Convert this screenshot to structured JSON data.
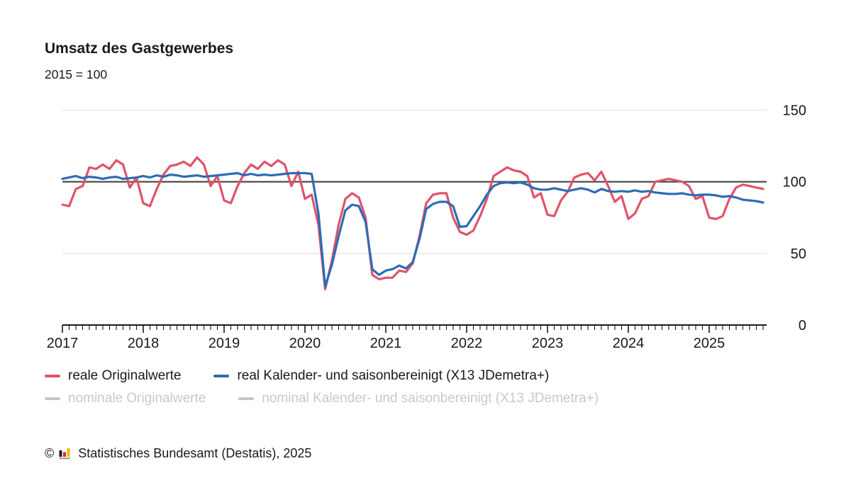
{
  "chart_data": {
    "type": "line",
    "title": "Umsatz des Gastgewerbes",
    "subtitle": "2015 = 100",
    "xlabel": "",
    "ylabel": "",
    "frequency": "monthly",
    "x_start": "2017-01",
    "x_end": "2025-09",
    "x_tick_labels": [
      "2017",
      "2018",
      "2019",
      "2020",
      "2021",
      "2022",
      "2023",
      "2024",
      "2025"
    ],
    "y_ticks": [
      0,
      50,
      100,
      150
    ],
    "ylim": [
      0,
      150
    ],
    "reference_line": 100,
    "grid": "horizontal-only",
    "legend_position": "bottom",
    "y_axis_labels_side": "right",
    "colors": {
      "real_original": "#e0536a",
      "real_adjusted": "#2e6cb4",
      "muted_legend": "#c3c6c9",
      "reference_line": "#454545",
      "axis": "#1a1a1a",
      "gridline": "#e7e7e7",
      "text": "#1a1a1a"
    },
    "series": [
      {
        "name": "reale Originalwerte",
        "color": "#e0536a",
        "values": [
          84,
          83,
          95,
          97,
          110,
          109,
          112,
          109,
          115,
          112,
          96,
          103,
          85,
          83,
          95,
          105,
          111,
          112,
          114,
          111,
          117,
          112,
          97,
          104,
          87,
          85,
          97,
          106,
          112,
          109,
          114,
          111,
          115,
          112,
          97,
          107,
          88,
          91,
          70,
          25,
          45,
          70,
          88,
          92,
          89,
          75,
          35,
          32,
          33,
          33,
          38,
          37,
          43,
          62,
          85,
          91,
          92,
          92,
          75,
          65,
          63,
          66,
          76,
          88,
          104,
          107,
          110,
          108,
          107,
          104,
          89,
          92,
          77,
          76,
          87,
          93,
          103,
          105,
          106,
          101,
          107,
          97,
          86,
          90,
          74,
          78,
          88,
          90,
          100,
          101,
          102,
          101,
          100,
          97,
          88,
          90,
          75,
          74,
          76,
          88,
          96,
          98,
          97,
          96,
          95
        ]
      },
      {
        "name": "real Kalender- und saisonbereinigt (X13 JDemetra+)",
        "color": "#2e6cb4",
        "values": [
          102,
          103,
          104,
          102.5,
          103.5,
          103,
          102,
          103,
          103.5,
          102,
          102.5,
          103,
          104,
          103,
          104.5,
          103.5,
          105,
          104.5,
          103.5,
          104,
          104.5,
          103.5,
          104,
          104.5,
          105,
          105.5,
          106,
          104.5,
          105.5,
          104.5,
          105,
          104.5,
          105,
          105.5,
          106,
          106,
          106,
          105.5,
          78,
          27,
          42,
          62,
          80,
          84,
          83,
          72,
          39,
          35,
          38,
          39,
          41.5,
          39.5,
          44,
          60,
          81,
          84.5,
          86,
          86,
          83,
          68.5,
          69,
          76,
          83,
          91,
          97,
          99,
          99.5,
          99,
          99.5,
          98,
          95.5,
          94.5,
          94.5,
          95.5,
          94.5,
          93.5,
          94.5,
          95.5,
          94.5,
          92.5,
          95,
          93.5,
          93,
          93.5,
          93,
          94,
          93,
          93.5,
          92.5,
          92,
          91.5,
          91.5,
          92,
          91,
          90.5,
          91,
          91,
          90.5,
          89.5,
          90,
          89,
          87.5,
          87,
          86.5,
          85.5
        ]
      }
    ]
  },
  "legend": {
    "rows": [
      {
        "items": [
          {
            "label": "reale Originalwerte",
            "color": "#e0536a",
            "muted": false
          },
          {
            "label": "real Kalender- und saisonbereinigt (X13 JDemetra+)",
            "color": "#2e6cb4",
            "muted": false
          }
        ]
      },
      {
        "items": [
          {
            "label": "nominale Originalwerte",
            "color": "#c3c6c9",
            "muted": true
          },
          {
            "label": "nominal Kalender- und saisonbereinigt (X13 JDemetra+)",
            "color": "#c3c6c9",
            "muted": true
          }
        ]
      }
    ]
  },
  "footer": {
    "copyright_symbol": "©",
    "source": "Statistisches Bundesamt (Destatis), 2025"
  }
}
